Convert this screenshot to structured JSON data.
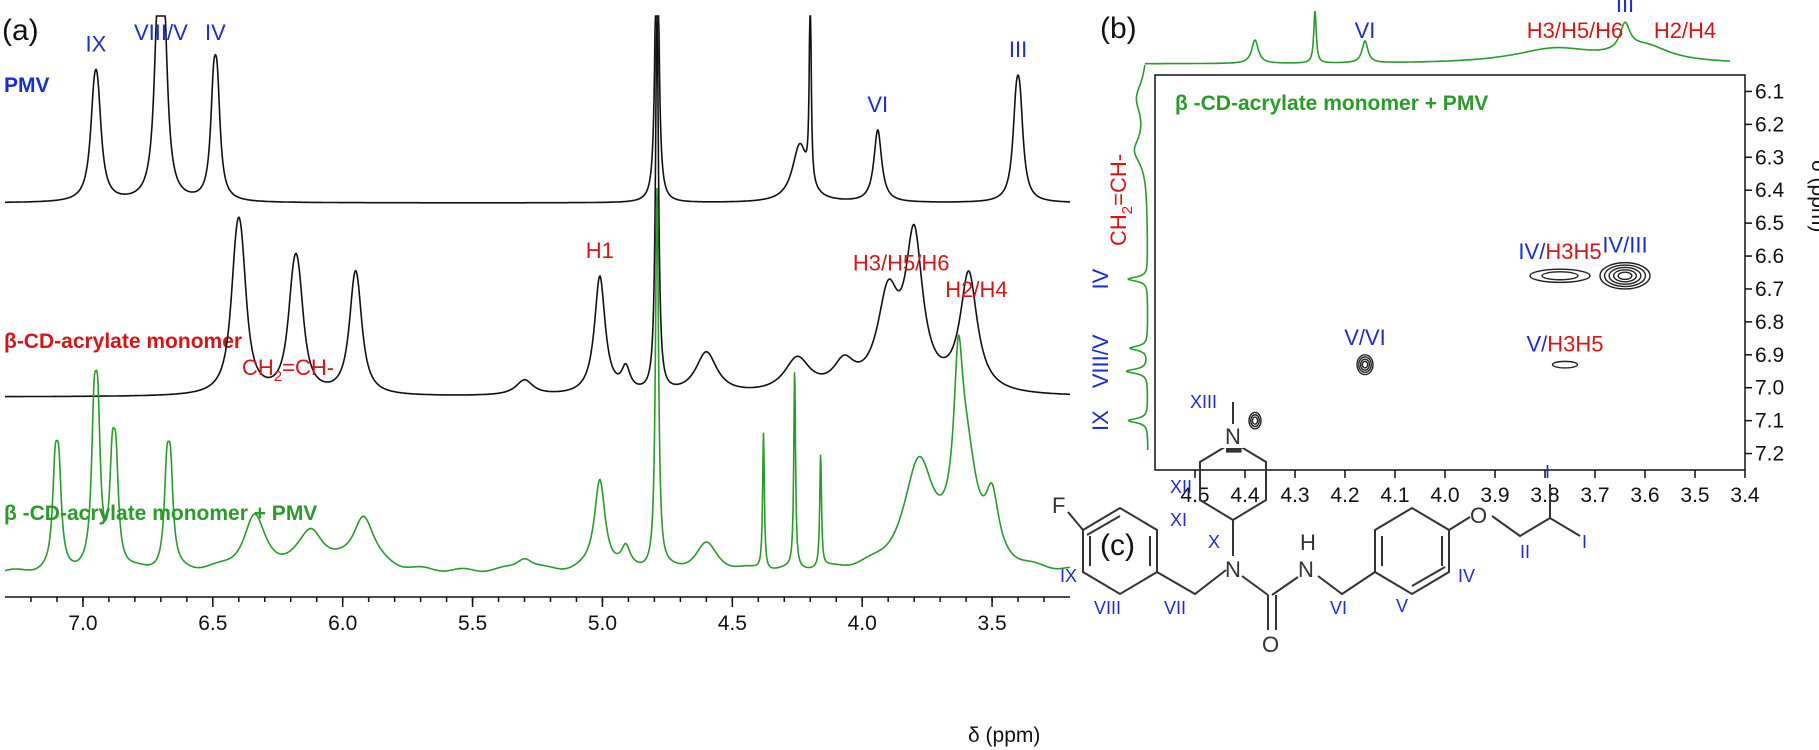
{
  "panels": {
    "a": "(a)",
    "b": "(b)",
    "c": "(c)"
  },
  "colors": {
    "black": "#111111",
    "blue": "#1a2ecc",
    "red": "#d01818",
    "green": "#2a9a2a"
  },
  "chart_data": [
    {
      "type": "line",
      "panel": "a",
      "xlabel": "δ (ppm)",
      "xlim": [
        7.3,
        3.2
      ],
      "x_reversed": true,
      "xticks": [
        "7.0",
        "6.5",
        "6.0",
        "5.5",
        "5.0",
        "4.5",
        "4.0",
        "3.5"
      ],
      "xtick_values": [
        7.0,
        6.5,
        6.0,
        5.5,
        5.0,
        4.5,
        4.0,
        3.5
      ],
      "series": [
        {
          "name": "PMV",
          "color": "#111111",
          "peaks": [
            {
              "x": 6.95,
              "h": 0.4,
              "w": 0.018,
              "multiplet": 2
            },
            {
              "x": 6.7,
              "h": 0.7,
              "w": 0.016,
              "multiplet": 3
            },
            {
              "x": 6.49,
              "h": 0.48,
              "w": 0.014,
              "multiplet": 2
            },
            {
              "x": 4.79,
              "h": 2.0,
              "w": 0.007,
              "multiplet": 1
            },
            {
              "x": 4.24,
              "h": 0.3,
              "w": 0.035,
              "multiplet": 1
            },
            {
              "x": 4.2,
              "h": 1.1,
              "w": 0.004,
              "multiplet": 1
            },
            {
              "x": 3.94,
              "h": 0.38,
              "w": 0.018,
              "multiplet": 1
            },
            {
              "x": 3.4,
              "h": 0.4,
              "w": 0.016,
              "multiplet": 2
            }
          ]
        },
        {
          "name": "β-CD-acrylate monomer",
          "color": "#111111",
          "peaks": [
            {
              "x": 6.4,
              "h": 0.42,
              "w": 0.025,
              "multiplet": 3
            },
            {
              "x": 6.18,
              "h": 0.33,
              "w": 0.025,
              "multiplet": 3
            },
            {
              "x": 5.95,
              "h": 0.35,
              "w": 0.025,
              "multiplet": 2
            },
            {
              "x": 5.3,
              "h": 0.08,
              "w": 0.04,
              "multiplet": 1
            },
            {
              "x": 5.01,
              "h": 0.62,
              "w": 0.025,
              "multiplet": 1
            },
            {
              "x": 4.91,
              "h": 0.12,
              "w": 0.02,
              "multiplet": 1
            },
            {
              "x": 4.79,
              "h": 2.0,
              "w": 0.007,
              "multiplet": 1
            },
            {
              "x": 4.6,
              "h": 0.22,
              "w": 0.05,
              "multiplet": 1
            },
            {
              "x": 4.25,
              "h": 0.18,
              "w": 0.06,
              "multiplet": 1
            },
            {
              "x": 4.07,
              "h": 0.14,
              "w": 0.05,
              "multiplet": 1
            },
            {
              "x": 3.9,
              "h": 0.48,
              "w": 0.05,
              "multiplet": 1
            },
            {
              "x": 3.8,
              "h": 0.78,
              "w": 0.04,
              "multiplet": 1
            },
            {
              "x": 3.59,
              "h": 0.62,
              "w": 0.04,
              "multiplet": 1
            }
          ]
        },
        {
          "name": "β -CD-acrylate monomer + PMV",
          "color": "#2a9a2a",
          "peaks": [
            {
              "x": 7.1,
              "h": 0.45,
              "w": 0.012,
              "multiplet": 2
            },
            {
              "x": 6.95,
              "h": 0.68,
              "w": 0.012,
              "multiplet": 2
            },
            {
              "x": 6.88,
              "h": 0.48,
              "w": 0.012,
              "multiplet": 2
            },
            {
              "x": 6.67,
              "h": 0.45,
              "w": 0.012,
              "multiplet": 2
            },
            {
              "x": 6.34,
              "h": 0.28,
              "w": 0.05,
              "multiplet": 1
            },
            {
              "x": 6.12,
              "h": 0.2,
              "w": 0.06,
              "multiplet": 1
            },
            {
              "x": 5.92,
              "h": 0.28,
              "w": 0.05,
              "multiplet": 1
            },
            {
              "x": 5.3,
              "h": 0.07,
              "w": 0.04,
              "multiplet": 1
            },
            {
              "x": 5.01,
              "h": 0.48,
              "w": 0.025,
              "multiplet": 1
            },
            {
              "x": 4.91,
              "h": 0.1,
              "w": 0.02,
              "multiplet": 1
            },
            {
              "x": 4.79,
              "h": 2.0,
              "w": 0.007,
              "multiplet": 1
            },
            {
              "x": 4.6,
              "h": 0.14,
              "w": 0.05,
              "multiplet": 1
            },
            {
              "x": 4.38,
              "h": 0.72,
              "w": 0.004,
              "multiplet": 1
            },
            {
              "x": 4.26,
              "h": 1.05,
              "w": 0.004,
              "multiplet": 1
            },
            {
              "x": 4.16,
              "h": 0.6,
              "w": 0.004,
              "multiplet": 1
            },
            {
              "x": 3.78,
              "h": 0.55,
              "w": 0.07,
              "multiplet": 1
            },
            {
              "x": 3.63,
              "h": 0.72,
              "w": 0.02,
              "multiplet": 1
            },
            {
              "x": 3.6,
              "h": 0.55,
              "w": 0.05,
              "multiplet": 1
            },
            {
              "x": 3.5,
              "h": 0.3,
              "w": 0.03,
              "multiplet": 1
            }
          ]
        }
      ],
      "annotations": [
        {
          "series": 0,
          "text": "IX",
          "x": 6.95,
          "color": "blue"
        },
        {
          "series": 0,
          "text": "VIII/V",
          "x": 6.7,
          "color": "blue"
        },
        {
          "series": 0,
          "text": "IV",
          "x": 6.49,
          "color": "blue"
        },
        {
          "series": 0,
          "text": "VI",
          "x": 3.94,
          "color": "blue"
        },
        {
          "series": 0,
          "text": "III",
          "x": 3.4,
          "color": "blue"
        },
        {
          "series": 1,
          "text": "H1",
          "x": 5.01,
          "color": "red"
        },
        {
          "series": 1,
          "text": "H3/H5/H6",
          "x": 3.85,
          "color": "red"
        },
        {
          "series": 1,
          "text": "H2/H4",
          "x": 3.56,
          "color": "red"
        }
      ],
      "ch2_label": {
        "main": "CH",
        "sub": "2",
        "rest": "=CH-"
      }
    },
    {
      "type": "heatmap",
      "panel": "b",
      "subtype": "2D NMR contour",
      "title": "β -CD-acrylate monomer + PMV",
      "ylabel": "δ (ppm)",
      "xlim": [
        4.58,
        3.4
      ],
      "ylim": [
        6.05,
        7.25
      ],
      "xticks": [
        "4.5",
        "4.4",
        "4.3",
        "4.2",
        "4.1",
        "4.0",
        "3.9",
        "3.8",
        "3.7",
        "3.6",
        "3.5",
        "3.4"
      ],
      "xtick_values": [
        4.5,
        4.4,
        4.3,
        4.2,
        4.1,
        4.0,
        3.9,
        3.8,
        3.7,
        3.6,
        3.5,
        3.4
      ],
      "yticks": [
        "6.1",
        "6.2",
        "6.3",
        "6.4",
        "6.5",
        "6.6",
        "6.7",
        "6.8",
        "6.9",
        "7.0",
        "7.1",
        "7.2"
      ],
      "ytick_values": [
        6.1,
        6.2,
        6.3,
        6.4,
        6.5,
        6.6,
        6.7,
        6.8,
        6.9,
        7.0,
        7.1,
        7.2
      ],
      "cross_peaks": [
        {
          "x": 4.38,
          "y": 7.1,
          "rx": 0.012,
          "ry": 0.025,
          "levels": 3,
          "label": ""
        },
        {
          "x": 4.16,
          "y": 6.93,
          "rx": 0.016,
          "ry": 0.03,
          "levels": 4,
          "label": "V/VI"
        },
        {
          "x": 3.77,
          "y": 6.66,
          "rx": 0.06,
          "ry": 0.02,
          "levels": 2,
          "label": "IV/H3H5"
        },
        {
          "x": 3.64,
          "y": 6.66,
          "rx": 0.05,
          "ry": 0.04,
          "levels": 5,
          "label": "IV/III"
        },
        {
          "x": 3.76,
          "y": 6.93,
          "rx": 0.025,
          "ry": 0.01,
          "levels": 1,
          "label": "V/H3H5"
        }
      ],
      "top_projection": [
        {
          "x": 4.38,
          "h": 0.45,
          "w": 0.008
        },
        {
          "x": 4.26,
          "h": 1.0,
          "w": 0.003
        },
        {
          "x": 4.16,
          "h": 0.42,
          "w": 0.007
        },
        {
          "x": 3.78,
          "h": 0.28,
          "w": 0.1
        },
        {
          "x": 3.64,
          "h": 0.5,
          "w": 0.012
        },
        {
          "x": 3.6,
          "h": 0.3,
          "w": 0.06
        }
      ],
      "left_projection": [
        {
          "y": 6.28,
          "h": 0.35,
          "w": 0.05
        },
        {
          "y": 6.12,
          "h": 0.3,
          "w": 0.06
        },
        {
          "y": 6.67,
          "h": 0.55,
          "w": 0.008
        },
        {
          "y": 6.88,
          "h": 0.5,
          "w": 0.008
        },
        {
          "y": 6.95,
          "h": 0.6,
          "w": 0.008
        },
        {
          "y": 7.1,
          "h": 0.55,
          "w": 0.008
        }
      ],
      "top_labels": [
        {
          "text": "VI",
          "x": 4.16,
          "color": "blue"
        },
        {
          "text": "H3/H5/H6",
          "x": 3.74,
          "color": "red"
        },
        {
          "text": "III",
          "x": 3.64,
          "color": "blue"
        },
        {
          "text": "H2/H4",
          "x": 3.52,
          "color": "red"
        }
      ],
      "left_labels": [
        {
          "text": "IV",
          "y": 6.67,
          "color": "blue"
        },
        {
          "text": "VIII/V",
          "y": 6.92,
          "color": "blue"
        },
        {
          "text": "IX",
          "y": 7.1,
          "color": "blue"
        }
      ],
      "left_ch2_label": {
        "main": "CH",
        "sub": "2",
        "rest": "=CH-"
      }
    }
  ],
  "molecule": {
    "atoms": {
      "F": "F",
      "N1": "N",
      "N2": "N",
      "N3": "N",
      "H": "H",
      "O1": "O",
      "O2": "O"
    },
    "labels": [
      "XIII",
      "XII",
      "XI",
      "X",
      "IX",
      "VIII",
      "VII",
      "VI",
      "V",
      "IV",
      "II",
      "I",
      "I"
    ]
  }
}
